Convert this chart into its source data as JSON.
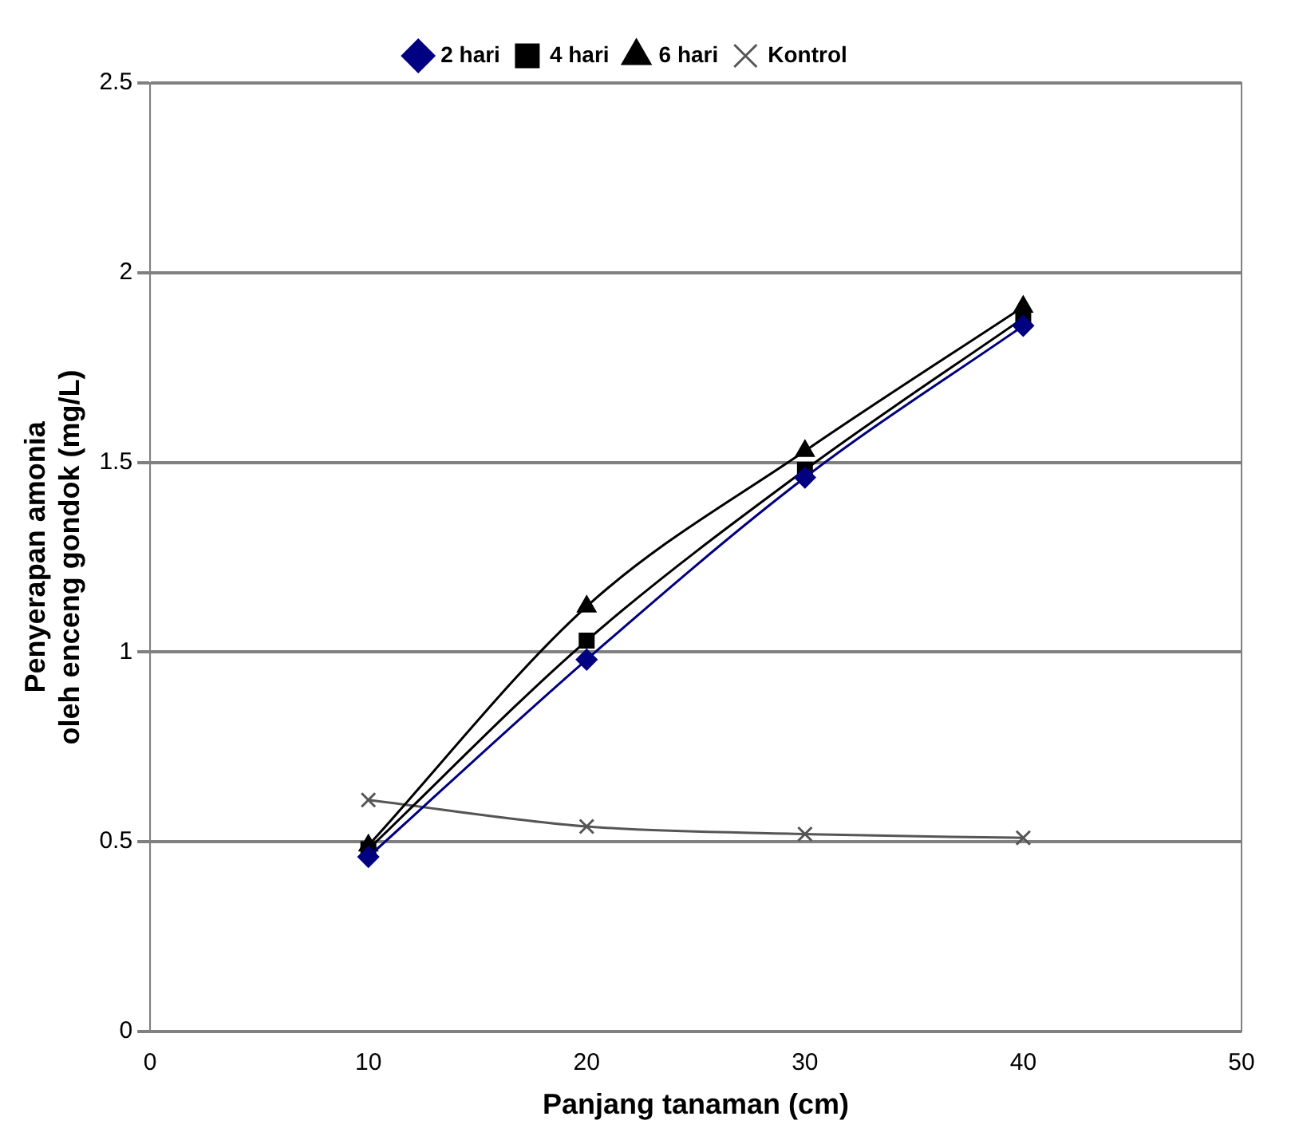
{
  "chart_data": {
    "type": "line",
    "xlabel": "Panjang tanaman (cm)",
    "ylabel": "Penyerapan amonia\noleh enceng gondok (mg/L)",
    "x": [
      10,
      20,
      30,
      40
    ],
    "xlim": [
      0,
      50
    ],
    "xticks": [
      0,
      10,
      20,
      30,
      40,
      50
    ],
    "ylim": [
      0,
      2.5
    ],
    "yticks": [
      0,
      0.5,
      1,
      1.5,
      2,
      2.5
    ],
    "grid": "y",
    "legend": "top",
    "series": [
      {
        "name": "2 hari",
        "color": "#000080",
        "marker": "diamond",
        "values": [
          0.46,
          0.98,
          1.46,
          1.86
        ]
      },
      {
        "name": "4 hari",
        "color": "#000000",
        "marker": "square",
        "values": [
          0.48,
          1.03,
          1.48,
          1.88
        ]
      },
      {
        "name": "6 hari",
        "color": "#000000",
        "marker": "triangle",
        "values": [
          0.49,
          1.12,
          1.53,
          1.91
        ]
      },
      {
        "name": "Kontrol",
        "color": "#555555",
        "marker": "cross",
        "values": [
          0.61,
          0.54,
          0.52,
          0.51
        ]
      }
    ]
  }
}
